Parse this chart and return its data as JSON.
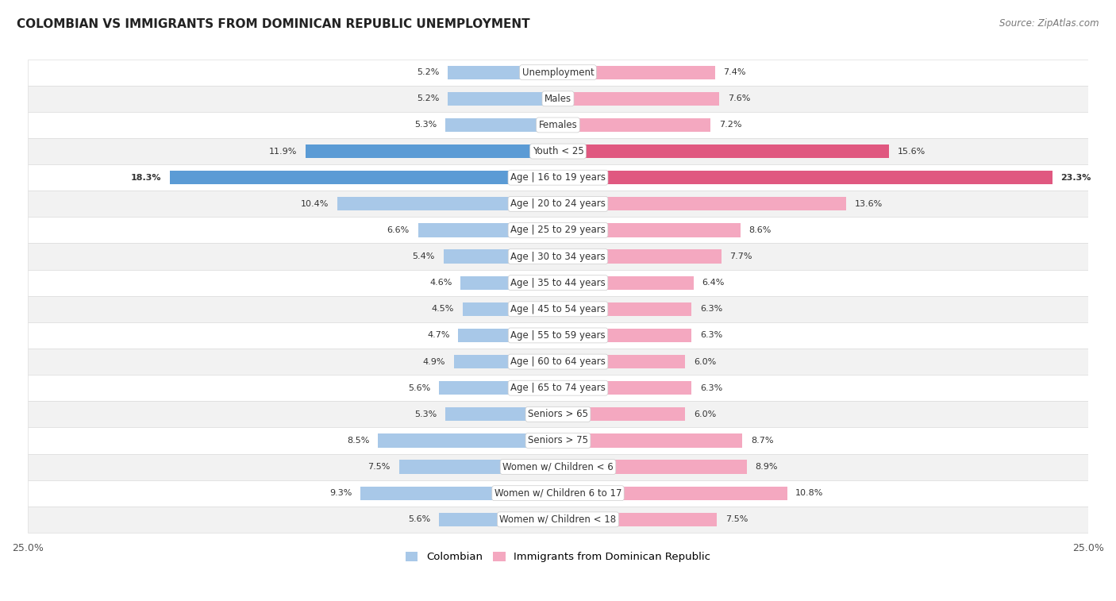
{
  "title": "COLOMBIAN VS IMMIGRANTS FROM DOMINICAN REPUBLIC UNEMPLOYMENT",
  "source": "Source: ZipAtlas.com",
  "categories": [
    "Unemployment",
    "Males",
    "Females",
    "Youth < 25",
    "Age | 16 to 19 years",
    "Age | 20 to 24 years",
    "Age | 25 to 29 years",
    "Age | 30 to 34 years",
    "Age | 35 to 44 years",
    "Age | 45 to 54 years",
    "Age | 55 to 59 years",
    "Age | 60 to 64 years",
    "Age | 65 to 74 years",
    "Seniors > 65",
    "Seniors > 75",
    "Women w/ Children < 6",
    "Women w/ Children 6 to 17",
    "Women w/ Children < 18"
  ],
  "colombian": [
    5.2,
    5.2,
    5.3,
    11.9,
    18.3,
    10.4,
    6.6,
    5.4,
    4.6,
    4.5,
    4.7,
    4.9,
    5.6,
    5.3,
    8.5,
    7.5,
    9.3,
    5.6
  ],
  "dominican": [
    7.4,
    7.6,
    7.2,
    15.6,
    23.3,
    13.6,
    8.6,
    7.7,
    6.4,
    6.3,
    6.3,
    6.0,
    6.3,
    6.0,
    8.7,
    8.9,
    10.8,
    7.5
  ],
  "colombian_color": "#a8c8e8",
  "dominican_color": "#f4a8c0",
  "colombian_highlight_color": "#5b9bd5",
  "dominican_highlight_color": "#e05880",
  "bg_white": "#ffffff",
  "bg_light_gray": "#f2f2f2",
  "row_separator": "#dddddd",
  "xlim": 25.0,
  "bar_height": 0.52,
  "highlight_rows": [
    3,
    4
  ],
  "legend_colombian": "Colombian",
  "legend_dominican": "Immigrants from Dominican Republic",
  "title_fontsize": 11,
  "label_fontsize": 8.5,
  "value_fontsize": 8.0
}
